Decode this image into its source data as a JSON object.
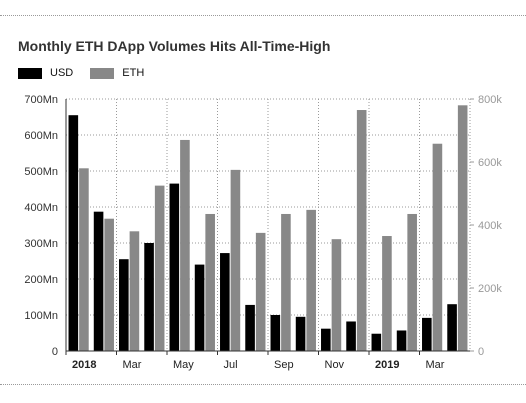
{
  "chart_data": {
    "type": "bar",
    "title": "Monthly ETH DApp Volumes Hits All-Time-High",
    "categories": [
      "2018-01",
      "2018-02",
      "2018-03",
      "2018-04",
      "2018-05",
      "2018-06",
      "2018-07",
      "2018-08",
      "2018-09",
      "2018-10",
      "2018-11",
      "2018-12",
      "2019-01",
      "2019-02",
      "2019-03",
      "2019-04"
    ],
    "x_tick_labels": [
      "2018",
      "Mar",
      "May",
      "Jul",
      "Sep",
      "Nov",
      "2019",
      "Mar"
    ],
    "x_tick_categories": [
      "2018-01",
      "2018-03",
      "2018-05",
      "2018-07",
      "2018-09",
      "2018-11",
      "2019-01",
      "2019-03"
    ],
    "x_tick_bold": [
      true,
      false,
      false,
      false,
      false,
      false,
      true,
      false
    ],
    "series": [
      {
        "name": "USD",
        "axis": "left",
        "color": "#000000",
        "values": [
          655,
          387,
          255,
          300,
          465,
          240,
          272,
          128,
          100,
          95,
          62,
          82,
          48,
          57,
          92,
          130
        ]
      },
      {
        "name": "ETH",
        "axis": "right",
        "color": "#888888",
        "values": [
          580,
          420,
          380,
          525,
          670,
          435,
          575,
          375,
          435,
          448,
          355,
          765,
          365,
          435,
          658,
          780
        ]
      }
    ],
    "y_left": {
      "min": 0,
      "max": 700,
      "ticks": [
        0,
        100,
        200,
        300,
        400,
        500,
        600,
        700
      ],
      "tick_labels": [
        "0",
        "100Mn",
        "200Mn",
        "300Mn",
        "400Mn",
        "500Mn",
        "600Mn",
        "700Mn"
      ]
    },
    "y_right": {
      "min": 0,
      "max": 800,
      "ticks": [
        0,
        200,
        400,
        600,
        800
      ],
      "tick_labels": [
        "0",
        "200k",
        "400k",
        "600k",
        "800k"
      ]
    },
    "grid": true,
    "legend": "top-left"
  }
}
